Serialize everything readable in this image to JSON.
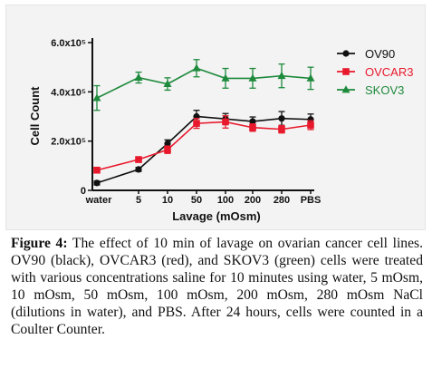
{
  "chart_data": {
    "type": "line",
    "title": "",
    "xlabel": "Lavage (mOsm)",
    "ylabel": "Cell Count",
    "categories": [
      "water",
      "5",
      "10",
      "50",
      "100",
      "200",
      "280",
      "PBS"
    ],
    "y_tick_labels": [
      "0",
      "2.0x10⁵",
      "4.0x10⁵",
      "6.0x10⁵"
    ],
    "ylim": [
      0,
      600000
    ],
    "grid": false,
    "legend_position": "top-right",
    "series": [
      {
        "name": "OV90",
        "color": "#111111",
        "marker": "circle",
        "values": [
          30000,
          85000,
          190000,
          300000,
          290000,
          280000,
          292000,
          288000
        ],
        "errors": [
          8000,
          8000,
          15000,
          25000,
          22000,
          18000,
          28000,
          22000
        ]
      },
      {
        "name": "OVCAR3",
        "color": "#e8192c",
        "marker": "square",
        "values": [
          82000,
          125000,
          165000,
          272000,
          278000,
          255000,
          248000,
          265000
        ],
        "errors": [
          8000,
          10000,
          15000,
          20000,
          25000,
          15000,
          15000,
          18000
        ]
      },
      {
        "name": "SKOV3",
        "color": "#1e8a3c",
        "marker": "triangle",
        "values": [
          375000,
          458000,
          432000,
          496000,
          455000,
          455000,
          465000,
          455000
        ],
        "errors": [
          50000,
          22000,
          25000,
          35000,
          40000,
          40000,
          48000,
          45000
        ]
      }
    ]
  },
  "caption": {
    "label": "Figure 4:",
    "text": " The effect of 10 min of lavage on ovarian cancer cell lines. OV90 (black), OVCAR3 (red), and SKOV3 (green) cells were treated with various concentrations saline for 10 minutes using water, 5 mOsm, 10 mOsm, 50 mOsm, 100 mOsm, 200 mOsm, 280 mOsm NaCl (dilutions in water), and PBS. After 24 hours, cells were counted in a Coulter Counter."
  }
}
